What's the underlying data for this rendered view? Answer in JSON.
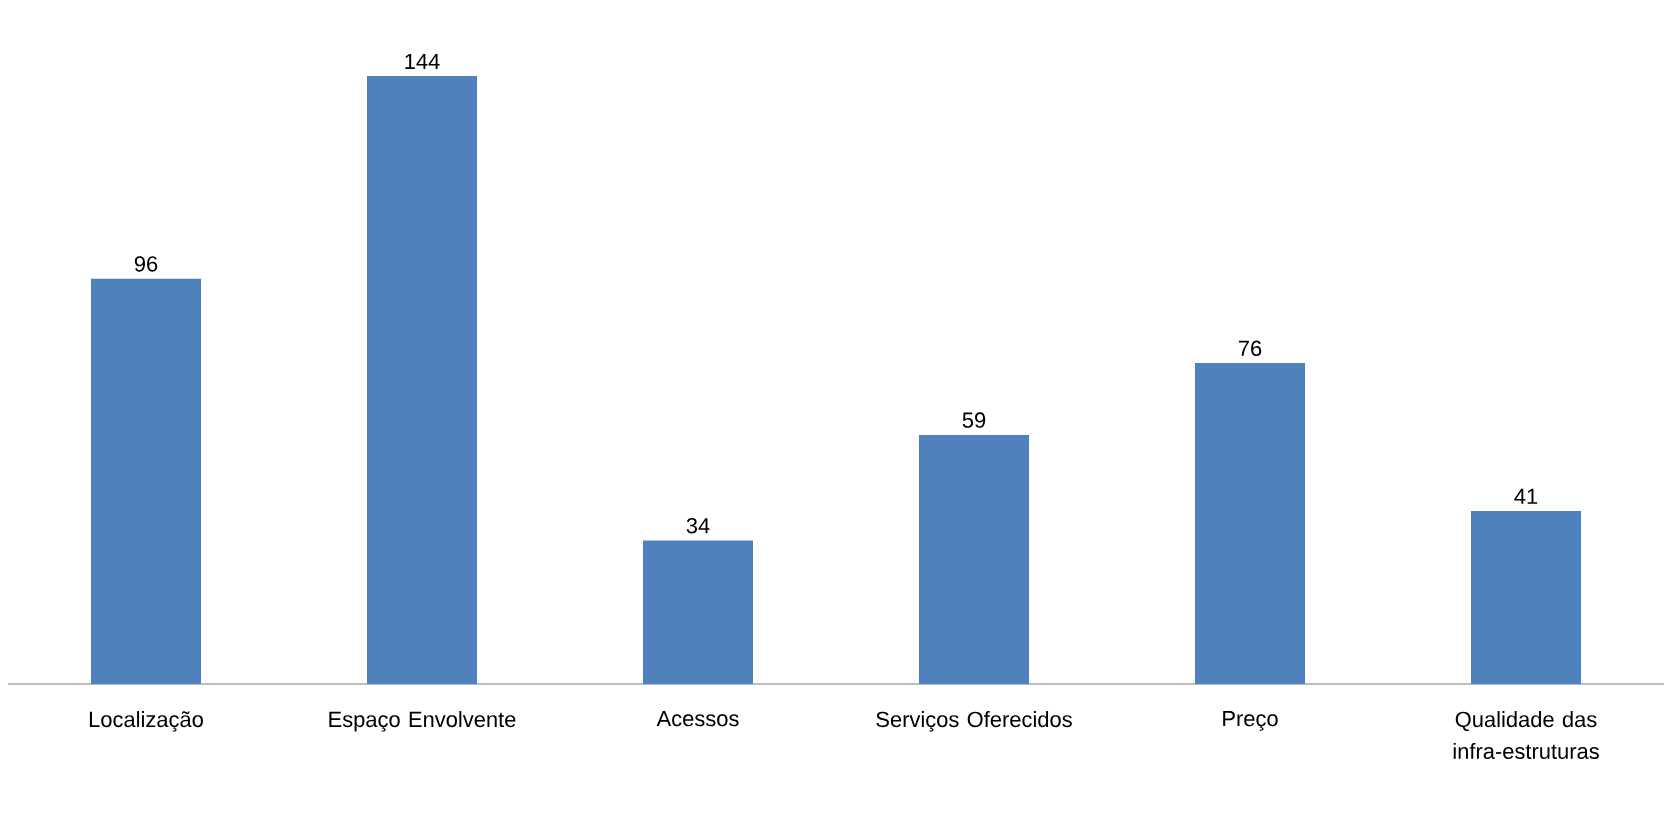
{
  "chart_data": {
    "type": "bar",
    "categories": [
      "Localização",
      "Espaço Envolvente",
      "Acessos",
      "Serviços Oferecidos",
      "Preço",
      "Qualidade das infra-estruturas"
    ],
    "values": [
      96,
      144,
      34,
      59,
      76,
      41
    ],
    "color": "#4f81bd",
    "data_labels": true
  }
}
